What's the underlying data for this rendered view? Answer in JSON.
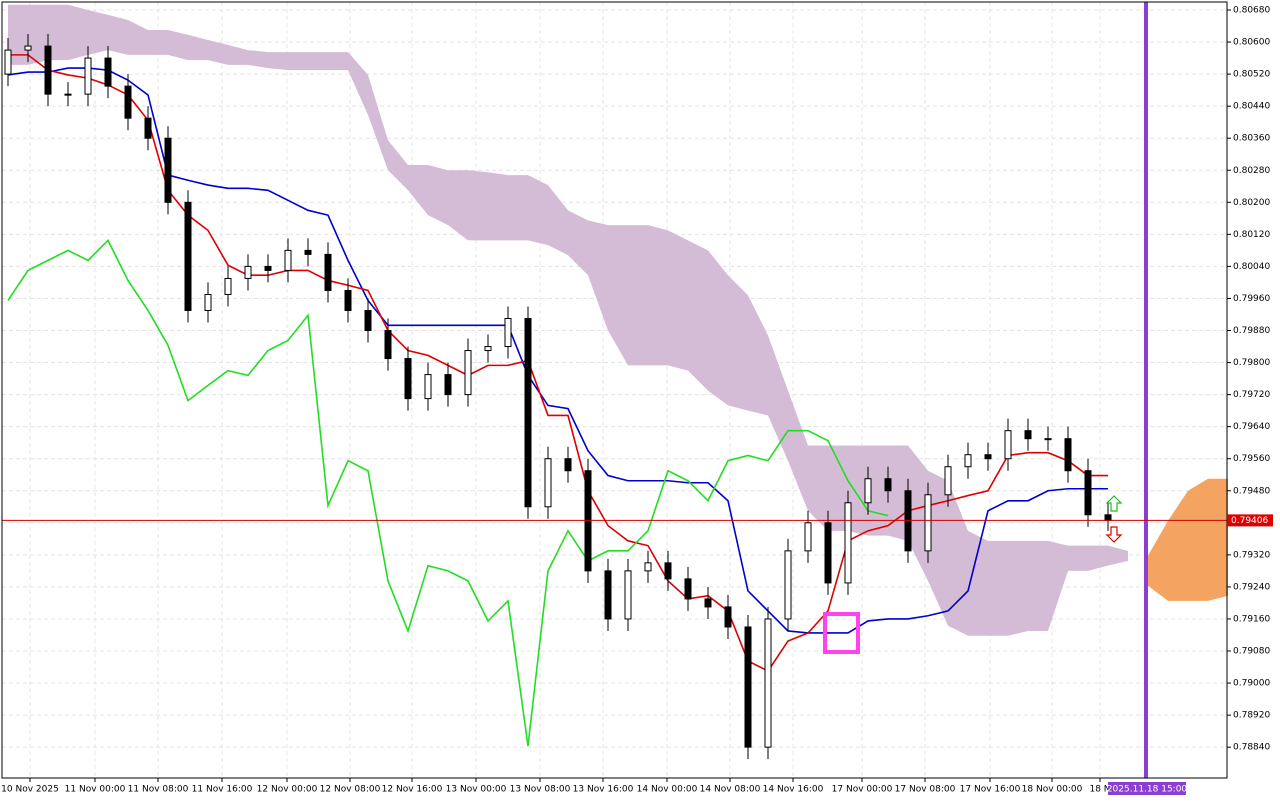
{
  "chart_data": {
    "type": "candlestick",
    "ylim": [
      0.78763,
      0.80705
    ],
    "yticks": [
      {
        "value": 0.7884,
        "label": "0.78840"
      },
      {
        "value": 0.7892,
        "label": "0.78920"
      },
      {
        "value": 0.79,
        "label": "0.79000"
      },
      {
        "value": 0.7908,
        "label": "0.79080"
      },
      {
        "value": 0.7916,
        "label": "0.79160"
      },
      {
        "value": 0.7924,
        "label": "0.79240"
      },
      {
        "value": 0.7932,
        "label": "0.79320"
      },
      {
        "value": 0.794,
        "label": "0.79400"
      },
      {
        "value": 0.7948,
        "label": "0.79480"
      },
      {
        "value": 0.7956,
        "label": "0.79560"
      },
      {
        "value": 0.7964,
        "label": "0.79640"
      },
      {
        "value": 0.7972,
        "label": "0.79720"
      },
      {
        "value": 0.798,
        "label": "0.79800"
      },
      {
        "value": 0.7988,
        "label": "0.79880"
      },
      {
        "value": 0.7996,
        "label": "0.79960"
      },
      {
        "value": 0.8004,
        "label": "0.80040"
      },
      {
        "value": 0.8012,
        "label": "0.80120"
      },
      {
        "value": 0.802,
        "label": "0.80200"
      },
      {
        "value": 0.8028,
        "label": "0.80280"
      },
      {
        "value": 0.8036,
        "label": "0.80360"
      },
      {
        "value": 0.8044,
        "label": "0.80440"
      },
      {
        "value": 0.8052,
        "label": "0.80520"
      },
      {
        "value": 0.806,
        "label": "0.80600"
      },
      {
        "value": 0.8068,
        "label": "0.80680"
      }
    ],
    "grid": true,
    "xlabels": [
      "10 Nov 2025",
      "11 Nov 00:00",
      "11 Nov 08:00",
      "11 Nov 16:00",
      "12 Nov 00:00",
      "12 Nov 08:00",
      "12 Nov 16:00",
      "13 Nov 00:00",
      "13 Nov 08:00",
      "13 Nov 16:00",
      "14 Nov 00:00",
      "14 Nov 08:00",
      "14 Nov 16:00",
      "17 Nov 00:00",
      "17 Nov 08:00",
      "17 Nov 16:00",
      "18 Nov 00:00",
      "18 N"
    ],
    "candles": {
      "open": [
        0.8052,
        0.8058,
        0.8059,
        0.8047,
        0.8047,
        0.8056,
        0.8049,
        0.8041,
        0.8036,
        0.802,
        0.7993,
        0.7997,
        0.8001,
        0.8004,
        0.8003,
        0.8008,
        0.8007,
        0.7998,
        0.7993,
        0.7988,
        0.7981,
        0.7971,
        0.7977,
        0.7972,
        0.7983,
        0.7984,
        0.7991,
        0.7944,
        0.7956,
        0.7953,
        0.7928,
        0.7916,
        0.7928,
        0.793,
        0.7926,
        0.7921,
        0.7919,
        0.7914,
        0.7884,
        0.7916,
        0.7933,
        0.794,
        0.7925,
        0.7945,
        0.7951,
        0.7948,
        0.7933,
        0.7947,
        0.7954,
        0.7957,
        0.7956,
        0.7963,
        0.7961,
        0.7961,
        0.7953,
        0.7942
      ],
      "high": [
        0.8061,
        0.8062,
        0.8062,
        0.805,
        0.8059,
        0.8059,
        0.8052,
        0.8044,
        0.8039,
        0.8023,
        0.8,
        0.8004,
        0.8007,
        0.8007,
        0.8011,
        0.8011,
        0.801,
        0.8001,
        0.7996,
        0.7991,
        0.7984,
        0.798,
        0.798,
        0.7986,
        0.7987,
        0.7994,
        0.7994,
        0.7959,
        0.7959,
        0.7956,
        0.7931,
        0.7931,
        0.7933,
        0.7933,
        0.7929,
        0.7924,
        0.7922,
        0.7917,
        0.7919,
        0.7936,
        0.7943,
        0.7943,
        0.7948,
        0.7954,
        0.7954,
        0.7951,
        0.795,
        0.7957,
        0.796,
        0.796,
        0.7966,
        0.7966,
        0.7964,
        0.7964,
        0.7956,
        0.7945
      ],
      "low": [
        0.8049,
        0.8055,
        0.8044,
        0.8044,
        0.8044,
        0.8046,
        0.8038,
        0.8033,
        0.8017,
        0.799,
        0.799,
        0.7994,
        0.7998,
        0.8,
        0.8,
        0.8004,
        0.7995,
        0.799,
        0.7985,
        0.7978,
        0.7968,
        0.7968,
        0.7969,
        0.7969,
        0.798,
        0.7981,
        0.7941,
        0.7941,
        0.795,
        0.7925,
        0.7913,
        0.7913,
        0.7925,
        0.7923,
        0.7918,
        0.7916,
        0.7911,
        0.7881,
        0.7881,
        0.7913,
        0.793,
        0.7922,
        0.7922,
        0.7942,
        0.7945,
        0.793,
        0.793,
        0.7944,
        0.7951,
        0.7953,
        0.7953,
        0.7958,
        0.7958,
        0.795,
        0.7939,
        0.7938
      ],
      "close": [
        0.8058,
        0.8059,
        0.8047,
        0.8047,
        0.8056,
        0.8049,
        0.8041,
        0.8036,
        0.802,
        0.7993,
        0.7997,
        0.8001,
        0.8004,
        0.8003,
        0.8008,
        0.8007,
        0.7998,
        0.7993,
        0.7988,
        0.7981,
        0.7971,
        0.7977,
        0.7972,
        0.7983,
        0.7984,
        0.7991,
        0.7944,
        0.7956,
        0.7953,
        0.7928,
        0.7916,
        0.7928,
        0.793,
        0.7926,
        0.7921,
        0.7919,
        0.7914,
        0.7884,
        0.7916,
        0.7933,
        0.794,
        0.7925,
        0.7945,
        0.7951,
        0.7948,
        0.7933,
        0.7947,
        0.7954,
        0.7957,
        0.7956,
        0.7963,
        0.7961,
        0.7961,
        0.7953,
        0.7942,
        0.79406
      ]
    },
    "cloud": {
      "color": "#d5bcd6",
      "upper": [
        0.80693,
        0.80693,
        0.80693,
        0.80693,
        0.8068,
        0.80668,
        0.80655,
        0.8063,
        0.8063,
        0.80618,
        0.80605,
        0.80593,
        0.8058,
        0.80575,
        0.80575,
        0.80575,
        0.80575,
        0.80575,
        0.80518,
        0.80355,
        0.80293,
        0.80293,
        0.8028,
        0.8028,
        0.80275,
        0.80268,
        0.80268,
        0.80243,
        0.8018,
        0.80155,
        0.80143,
        0.80143,
        0.80143,
        0.8013,
        0.80105,
        0.8008,
        0.80018,
        0.79968,
        0.79868,
        0.7973,
        0.79593,
        0.79593,
        0.79593,
        0.79593,
        0.79593,
        0.79593,
        0.7953,
        0.79505,
        0.7938,
        0.79355,
        0.79355,
        0.79355,
        0.79355,
        0.79343,
        0.79343,
        0.79343,
        0.7933,
        null,
        null,
        null,
        null,
        null
      ],
      "lower": [
        0.80543,
        0.80543,
        0.80555,
        0.80555,
        0.80568,
        0.8058,
        0.80568,
        0.80568,
        0.80568,
        0.80555,
        0.80555,
        0.80543,
        0.80543,
        0.80535,
        0.8053,
        0.8053,
        0.8053,
        0.8053,
        0.80418,
        0.8028,
        0.8023,
        0.80168,
        0.80143,
        0.80105,
        0.80105,
        0.80105,
        0.80105,
        0.80093,
        0.80068,
        0.80018,
        0.7988,
        0.79793,
        0.79793,
        0.79793,
        0.7978,
        0.7973,
        0.79693,
        0.7968,
        0.79668,
        0.79555,
        0.7943,
        0.7938,
        0.7938,
        0.79368,
        0.79368,
        0.79355,
        0.79255,
        0.79143,
        0.79118,
        0.79118,
        0.79118,
        0.7913,
        0.7913,
        0.7928,
        0.7928,
        0.79293,
        0.79305,
        null,
        null,
        null,
        null,
        null
      ]
    },
    "future_cloud": {
      "color": "#f4a460",
      "upper": [
        null,
        null,
        null,
        null,
        null,
        null,
        null,
        null,
        null,
        null,
        null,
        null,
        null,
        null,
        null,
        null,
        null,
        null,
        null,
        null,
        null,
        null,
        null,
        null,
        null,
        null,
        null,
        null,
        null,
        null,
        null,
        null,
        null,
        null,
        null,
        null,
        null,
        null,
        null,
        null,
        null,
        null,
        null,
        null,
        null,
        null,
        null,
        null,
        null,
        null,
        null,
        null,
        null,
        null,
        null,
        null,
        null,
        0.79318,
        0.79405,
        0.7948,
        0.7951,
        0.7951
      ],
      "lower": [
        null,
        null,
        null,
        null,
        null,
        null,
        null,
        null,
        null,
        null,
        null,
        null,
        null,
        null,
        null,
        null,
        null,
        null,
        null,
        null,
        null,
        null,
        null,
        null,
        null,
        null,
        null,
        null,
        null,
        null,
        null,
        null,
        null,
        null,
        null,
        null,
        null,
        null,
        null,
        null,
        null,
        null,
        null,
        null,
        null,
        null,
        null,
        null,
        null,
        null,
        null,
        null,
        null,
        null,
        null,
        null,
        null,
        0.79243,
        0.79205,
        0.79205,
        0.79205,
        0.79218
      ]
    },
    "lines": [
      {
        "color": "#0000cc",
        "values": [
          0.80518,
          0.80525,
          0.80525,
          0.80535,
          0.80535,
          0.8053,
          0.80505,
          0.80468,
          0.80268,
          0.80255,
          0.80243,
          0.80235,
          0.80235,
          0.8023,
          0.80205,
          0.8018,
          0.80168,
          0.80055,
          0.79955,
          0.79893,
          0.79893,
          0.79893,
          0.79893,
          0.79893,
          0.79893,
          0.79893,
          0.79768,
          0.79693,
          0.79685,
          0.7958,
          0.79518,
          0.79505,
          0.79505,
          0.79505,
          0.795,
          0.795,
          0.79455,
          0.7923,
          0.7918,
          0.7913,
          0.79125,
          0.79125,
          0.79125,
          0.79155,
          0.7916,
          0.7916,
          0.79168,
          0.7918,
          0.7923,
          0.7943,
          0.79455,
          0.79455,
          0.7948,
          0.79485,
          0.79485,
          0.79485,
          null,
          null,
          null,
          null,
          null,
          null
        ]
      },
      {
        "color": "#dd0000",
        "values": [
          0.80568,
          0.80568,
          0.8053,
          0.80518,
          0.8051,
          0.80493,
          0.80468,
          0.80405,
          0.8023,
          0.80168,
          0.8013,
          0.80043,
          0.80018,
          0.80018,
          0.8003,
          0.8003,
          0.80005,
          0.79993,
          0.7998,
          0.7988,
          0.7983,
          0.79818,
          0.79793,
          0.79768,
          0.79793,
          0.79793,
          0.79805,
          0.79668,
          0.79668,
          0.7948,
          0.79393,
          0.79355,
          0.79343,
          0.79255,
          0.7921,
          0.79218,
          0.7918,
          0.79055,
          0.7903,
          0.79105,
          0.79125,
          0.7918,
          0.79355,
          0.7938,
          0.79393,
          0.7943,
          0.79443,
          0.79455,
          0.79468,
          0.7948,
          0.79568,
          0.79575,
          0.79575,
          0.79555,
          0.79518,
          0.79518,
          null,
          null,
          null,
          null,
          null,
          null
        ]
      },
      {
        "color": "#22dd22",
        "values": [
          0.79955,
          0.8003,
          0.80055,
          0.8008,
          0.80055,
          0.80105,
          0.80005,
          0.7993,
          0.79843,
          0.79705,
          0.79743,
          0.7978,
          0.79768,
          0.7983,
          0.79855,
          0.79918,
          0.79443,
          0.79555,
          0.7953,
          0.79255,
          0.7913,
          0.79293,
          0.7928,
          0.79255,
          0.79155,
          0.79205,
          0.78843,
          0.7928,
          0.7938,
          0.79305,
          0.7933,
          0.7933,
          0.7938,
          0.7953,
          0.79505,
          0.79455,
          0.79555,
          0.79568,
          0.79555,
          0.7963,
          0.7963,
          0.79605,
          0.79505,
          0.7943,
          0.79418,
          null,
          null,
          null,
          null,
          null,
          null,
          null,
          null,
          null,
          null,
          null,
          null,
          null,
          null,
          null,
          null,
          null
        ]
      }
    ],
    "current_price": 0.79406,
    "cursor_label": "2025.11.18 15:00"
  }
}
